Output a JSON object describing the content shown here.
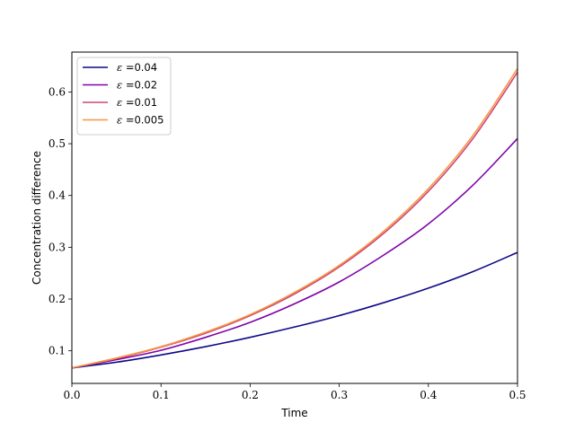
{
  "chart_data": {
    "type": "line",
    "title": "",
    "xlabel": "Time",
    "ylabel": "Concentration difference",
    "xlim": [
      0,
      0.5
    ],
    "ylim": [
      0.037,
      0.677
    ],
    "xticks": [
      0,
      0.1,
      0.2,
      0.3,
      0.4,
      0.5
    ],
    "xtick_labels": [
      "0.0",
      "0.1",
      "0.2",
      "0.3",
      "0.4",
      "0.5"
    ],
    "yticks": [
      0.1,
      0.2,
      0.3,
      0.4,
      0.5,
      0.6
    ],
    "ytick_labels": [
      "0.1",
      "0.2",
      "0.3",
      "0.4",
      "0.5",
      "0.6"
    ],
    "grid": false,
    "legend_position": "top-left",
    "x": [
      0,
      0.05,
      0.1,
      0.15,
      0.2,
      0.25,
      0.3,
      0.35,
      0.4,
      0.45,
      0.5
    ],
    "series": [
      {
        "name": "ε =0.04",
        "legend_symbol": "ε",
        "legend_value": "=0.04",
        "color": "#0d0887",
        "values": [
          0.067,
          0.078,
          0.092,
          0.108,
          0.126,
          0.146,
          0.168,
          0.193,
          0.221,
          0.253,
          0.29
        ]
      },
      {
        "name": "ε =0.02",
        "legend_symbol": "ε",
        "legend_value": "=0.02",
        "color": "#7e03a8",
        "values": [
          0.067,
          0.083,
          0.101,
          0.126,
          0.155,
          0.191,
          0.233,
          0.285,
          0.345,
          0.42,
          0.51
        ]
      },
      {
        "name": "ε =0.01",
        "legend_symbol": "ε",
        "legend_value": "=0.01",
        "color": "#cc4778",
        "values": [
          0.067,
          0.085,
          0.107,
          0.134,
          0.168,
          0.21,
          0.262,
          0.327,
          0.408,
          0.51,
          0.638
        ]
      },
      {
        "name": "ε =0.005",
        "legend_symbol": "ε",
        "legend_value": "=0.005",
        "color": "#f89540",
        "values": [
          0.067,
          0.086,
          0.108,
          0.136,
          0.17,
          0.213,
          0.265,
          0.331,
          0.413,
          0.516,
          0.645
        ]
      }
    ]
  }
}
